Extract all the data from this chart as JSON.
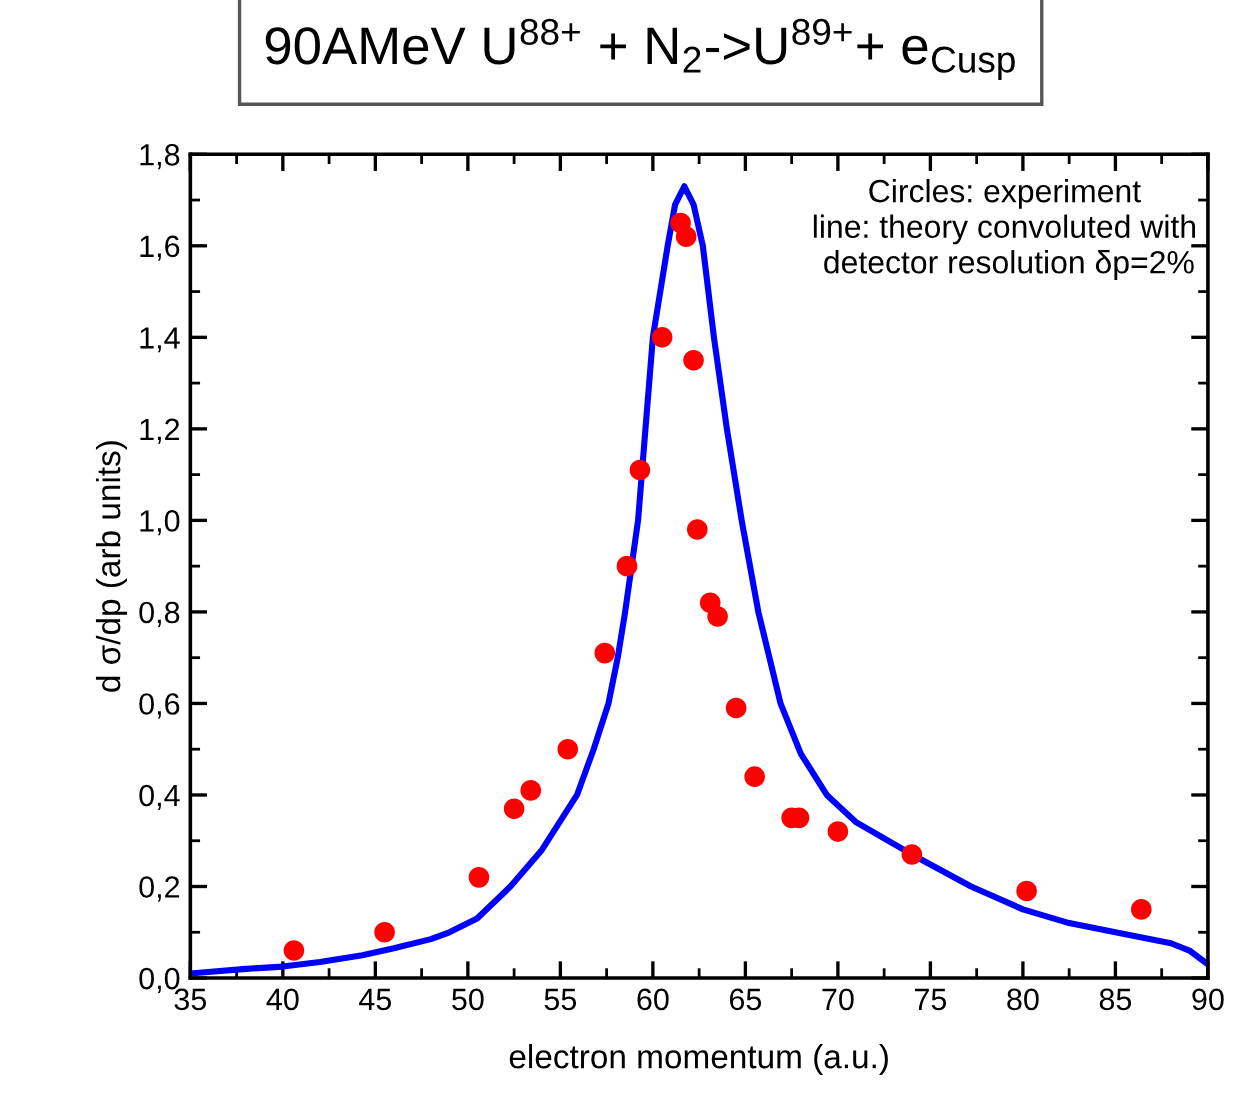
{
  "chart_data": {
    "type": "scatter",
    "title": "90AMeV U$^{88+}$ + N$_{2}$->U$^{89+}$+ e$_{Cusp}$",
    "xlabel": "electron momentum (a.u.)",
    "ylabel": "d σ/dp (arb units)",
    "annotations": [
      "Circles: experiment\nline: theory convoluted with\n detector resolution δp=2%"
    ],
    "series": [
      {
        "color": "#ff0000",
        "marker": "circle",
        "x": [
          40.6,
          45.5,
          50.6,
          52.5,
          53.4,
          55.4,
          57.4,
          58.6,
          59.3,
          60.5,
          61.5,
          61.8,
          62.2,
          62.4,
          63.1,
          63.5,
          64.5,
          65.5,
          67.5,
          67.9,
          70.0,
          74.0,
          80.2,
          86.4
        ],
        "values": [
          0.06,
          0.1,
          0.22,
          0.37,
          0.41,
          0.5,
          0.71,
          0.9,
          1.11,
          1.4,
          1.65,
          1.62,
          1.35,
          0.98,
          0.82,
          0.79,
          0.59,
          0.44,
          0.35,
          0.35,
          0.32,
          0.27,
          0.19,
          0.15
        ]
      },
      {
        "type": "line",
        "color": "#0000ff",
        "line_style": "solid",
        "x": [
          35,
          38,
          40,
          42,
          44.3,
          46,
          48,
          49,
          50.5,
          52.3,
          54,
          55.9,
          56.8,
          57.6,
          58.1,
          58.5,
          59.2,
          59.6,
          60.0,
          60.8,
          61.2,
          61.7,
          62.2,
          62.7,
          63.3,
          64.0,
          64.8,
          65.7,
          66.9,
          68,
          69.4,
          71,
          74,
          77.2,
          80,
          82.5,
          85,
          88,
          89,
          90
        ],
        "values": [
          0.01,
          0.02,
          0.025,
          0.035,
          0.05,
          0.065,
          0.085,
          0.1,
          0.13,
          0.2,
          0.28,
          0.4,
          0.5,
          0.6,
          0.7,
          0.8,
          1.0,
          1.2,
          1.4,
          1.6,
          1.69,
          1.73,
          1.69,
          1.6,
          1.4,
          1.2,
          1.0,
          0.8,
          0.6,
          0.49,
          0.4,
          0.34,
          0.27,
          0.2,
          0.15,
          0.12,
          0.1,
          0.076,
          0.06,
          0.03
        ]
      }
    ],
    "xlim": [
      35,
      90
    ],
    "xticks": [
      35,
      40,
      45,
      50,
      55,
      60,
      65,
      70,
      75,
      80,
      85,
      90
    ],
    "ylim": [
      0,
      1.8
    ],
    "yticks": [
      {
        "value": 0,
        "label": "0,0"
      },
      {
        "value": 0.2,
        "label": "0,2"
      },
      {
        "value": 0.4,
        "label": "0,4"
      },
      {
        "value": 0.6,
        "label": "0,6"
      },
      {
        "value": 0.8,
        "label": "0,8"
      },
      {
        "value": 1.0,
        "label": "1,0"
      },
      {
        "value": 1.2,
        "label": "1,2"
      },
      {
        "value": 1.4,
        "label": "1,4"
      },
      {
        "value": 1.6,
        "label": "1,6"
      },
      {
        "value": 1.8,
        "label": "1,8"
      }
    ],
    "grid": false,
    "legend": false
  }
}
